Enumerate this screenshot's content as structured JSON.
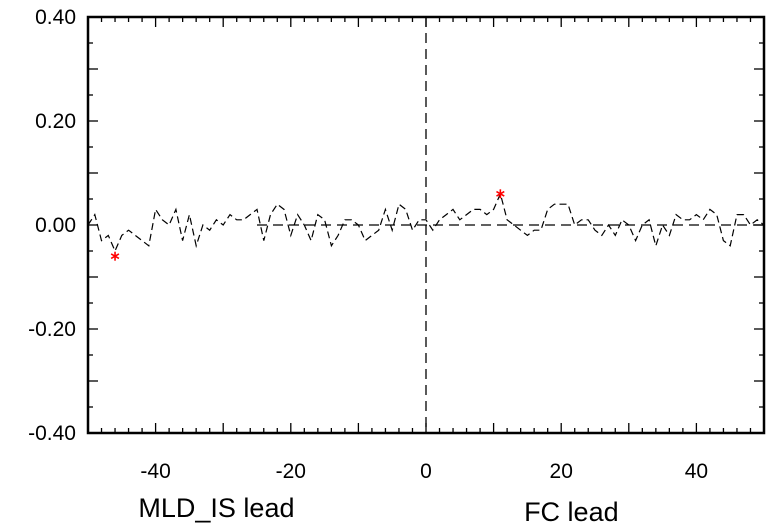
{
  "chart_data": {
    "type": "line",
    "title": "",
    "xlim": [
      -50,
      50
    ],
    "ylim": [
      -0.4,
      0.4
    ],
    "x_ticks": [
      -40,
      -20,
      0,
      20,
      40
    ],
    "x_tick_labels": [
      "-40",
      "-20",
      "0",
      "20",
      "40"
    ],
    "y_ticks": [
      -0.4,
      -0.2,
      0.0,
      0.2,
      0.4
    ],
    "y_tick_labels": [
      "-0.40",
      "-0.20",
      "0.00",
      "0.20",
      "0.40"
    ],
    "xlabel_left": "MLD_IS lead",
    "xlabel_right": "FC lead",
    "grid": false,
    "reference_lines": {
      "y": 0.0,
      "x": 0,
      "y_line_x_range": [
        -25,
        50
      ]
    },
    "series": [
      {
        "line_style": "dashed",
        "color": "#000000",
        "x": [
          -50,
          -49,
          -48,
          -47,
          -46,
          -45,
          -44,
          -43,
          -42,
          -41,
          -40,
          -39,
          -38,
          -37,
          -36,
          -35,
          -34,
          -33,
          -32,
          -31,
          -30,
          -29,
          -28,
          -27,
          -26,
          -25,
          -24,
          -23,
          -22,
          -21,
          -20,
          -19,
          -18,
          -17,
          -16,
          -15,
          -14,
          -13,
          -12,
          -11,
          -10,
          -9,
          -8,
          -7,
          -6,
          -5,
          -4,
          -3,
          -2,
          -1,
          0,
          1,
          2,
          3,
          4,
          5,
          6,
          7,
          8,
          9,
          10,
          11,
          12,
          13,
          14,
          15,
          16,
          17,
          18,
          19,
          20,
          21,
          22,
          23,
          24,
          25,
          26,
          27,
          28,
          29,
          30,
          31,
          32,
          33,
          34,
          35,
          36,
          37,
          38,
          39,
          40,
          41,
          42,
          43,
          44,
          45,
          46,
          47,
          48,
          49,
          50
        ],
        "y": [
          0.0,
          0.02,
          -0.03,
          -0.02,
          -0.05,
          -0.02,
          -0.01,
          -0.02,
          -0.03,
          -0.04,
          0.03,
          0.01,
          0.0,
          0.03,
          -0.03,
          0.02,
          -0.04,
          0.0,
          -0.01,
          0.01,
          0.0,
          0.02,
          0.01,
          0.01,
          0.02,
          0.03,
          -0.03,
          0.02,
          0.04,
          0.03,
          -0.02,
          0.02,
          0.0,
          -0.03,
          0.02,
          0.01,
          -0.04,
          -0.02,
          0.01,
          0.01,
          0.0,
          -0.03,
          -0.02,
          -0.01,
          0.03,
          -0.01,
          0.04,
          0.03,
          -0.01,
          0.01,
          0.01,
          -0.01,
          0.01,
          0.02,
          0.03,
          0.01,
          0.02,
          0.03,
          0.03,
          0.02,
          0.03,
          0.06,
          0.01,
          0.0,
          -0.01,
          -0.02,
          -0.01,
          -0.01,
          0.03,
          0.04,
          0.04,
          0.04,
          0.0,
          0.01,
          0.01,
          -0.01,
          -0.02,
          0.0,
          -0.02,
          0.01,
          0.0,
          -0.03,
          0.0,
          0.01,
          -0.04,
          0.0,
          -0.02,
          0.02,
          0.01,
          0.01,
          0.02,
          0.01,
          0.03,
          0.02,
          -0.03,
          -0.04,
          0.02,
          0.02,
          0.0,
          0.01,
          0.0
        ]
      }
    ],
    "markers": [
      {
        "x": -46,
        "y": -0.06,
        "symbol": "*",
        "color": "#ff0000"
      },
      {
        "x": 11,
        "y": 0.06,
        "symbol": "*",
        "color": "#ff0000"
      }
    ]
  }
}
